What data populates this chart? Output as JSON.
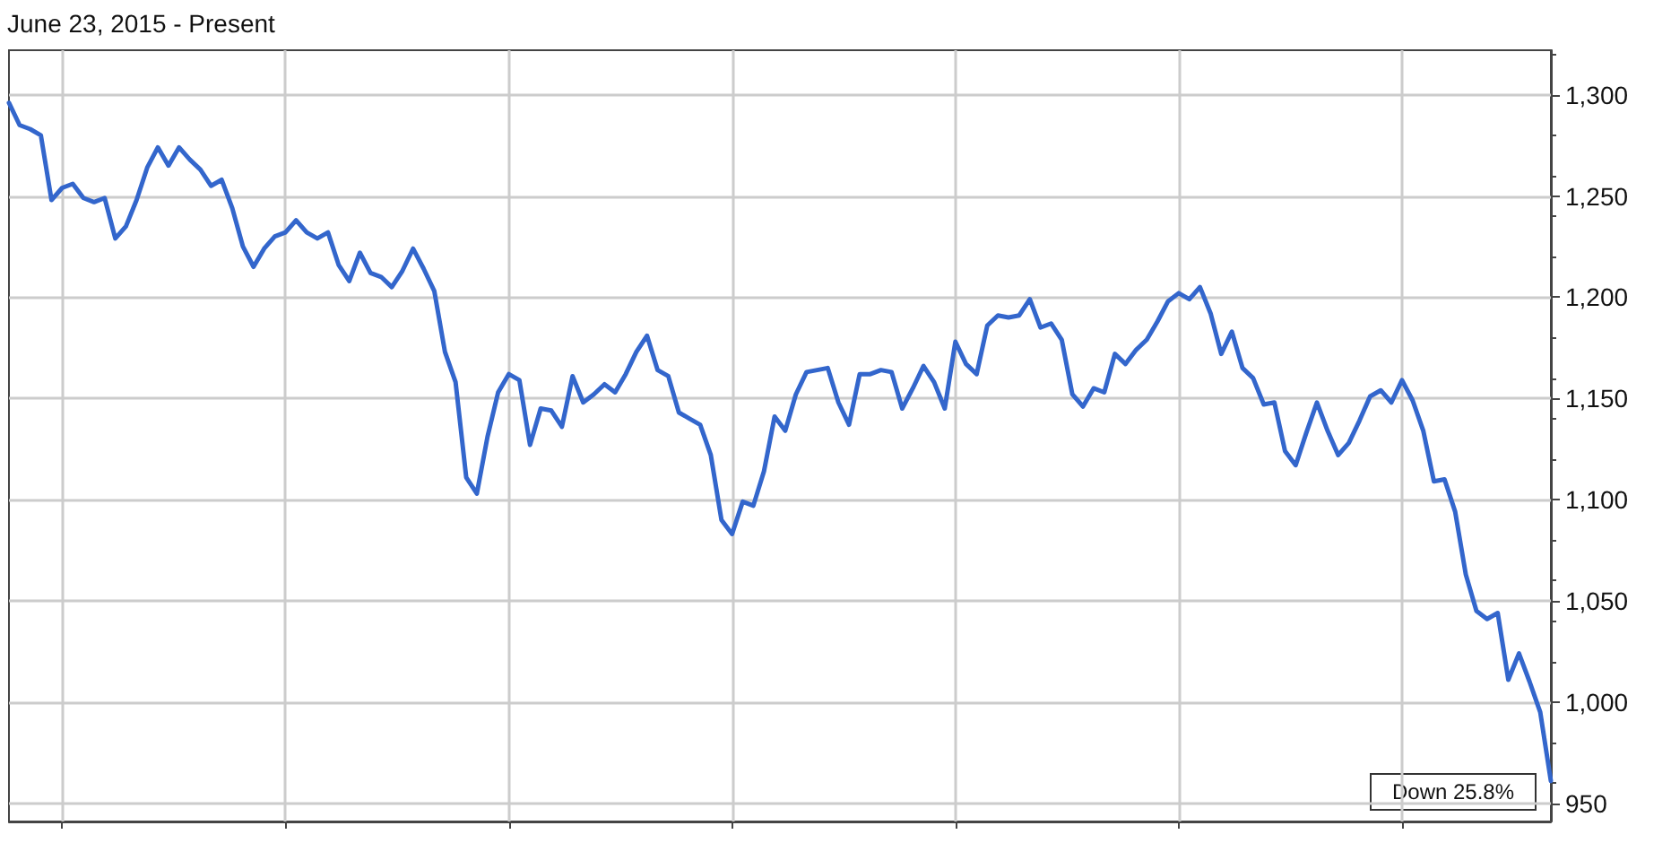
{
  "chart_data": {
    "type": "line",
    "title": "June 23, 2015 - Present",
    "categories": [
      null,
      null,
      null,
      null,
      null,
      null,
      null,
      null,
      null,
      null,
      null,
      null,
      null,
      null,
      null,
      null,
      null,
      null,
      null,
      null,
      null,
      null,
      null,
      null,
      null,
      null,
      null,
      null,
      null,
      null,
      null,
      null,
      null,
      null,
      null,
      null,
      null,
      null,
      null,
      null,
      null,
      null,
      null,
      null,
      null,
      null,
      null,
      null,
      null,
      null,
      null,
      null,
      null,
      null,
      null,
      null,
      null,
      null,
      null,
      null,
      null,
      null,
      null,
      null,
      null,
      null,
      null,
      null,
      null,
      null,
      null,
      null,
      null,
      null,
      null,
      null,
      null,
      null,
      null,
      null,
      null,
      null,
      null,
      null,
      null,
      null,
      null,
      null,
      null,
      null,
      null,
      null,
      null,
      null,
      null,
      null,
      null,
      null,
      null,
      null,
      null,
      null,
      null,
      null,
      null,
      null,
      null,
      null,
      null,
      null,
      null,
      null,
      null,
      null,
      null,
      null,
      null,
      null,
      null,
      null,
      null,
      null,
      null,
      null,
      null,
      null,
      null,
      null,
      null,
      null,
      null,
      null,
      null,
      null,
      null,
      null,
      null,
      null,
      null,
      null,
      null,
      null,
      null,
      null,
      null,
      null
    ],
    "series": [
      {
        "color": "#3366cc",
        "values": [
          1296,
          1285,
          1283,
          1280,
          1248,
          1254,
          1256,
          1249,
          1247,
          1249,
          1229,
          1235,
          1248,
          1264,
          1274,
          1265,
          1274,
          1268,
          1263,
          1255,
          1258,
          1244,
          1225,
          1215,
          1224,
          1230,
          1232,
          1238,
          1232,
          1229,
          1232,
          1216,
          1208,
          1222,
          1212,
          1210,
          1205,
          1213,
          1224,
          1214,
          1203,
          1173,
          1158,
          1111,
          1103,
          1131,
          1153,
          1162,
          1159,
          1127,
          1145,
          1144,
          1136,
          1161,
          1148,
          1152,
          1157,
          1153,
          1162,
          1173,
          1181,
          1164,
          1161,
          1143,
          1140,
          1137,
          1122,
          1090,
          1083,
          1099,
          1097,
          1114,
          1141,
          1134,
          1152,
          1163,
          1164,
          1165,
          1148,
          1137,
          1162,
          1162,
          1164,
          1163,
          1145,
          1155,
          1166,
          1158,
          1145,
          1178,
          1167,
          1162,
          1186,
          1191,
          1190,
          1191,
          1199,
          1185,
          1187,
          1179,
          1152,
          1146,
          1155,
          1153,
          1172,
          1167,
          1174,
          1179,
          1188,
          1198,
          1202,
          1199,
          1205,
          1192,
          1172,
          1183,
          1165,
          1160,
          1147,
          1148,
          1124,
          1117,
          1133,
          1148,
          1134,
          1122,
          1128,
          1139,
          1151,
          1154,
          1148,
          1159,
          1149,
          1134,
          1109,
          1110,
          1094,
          1063,
          1045,
          1041,
          1044,
          1011,
          1024,
          1010,
          995,
          961
        ]
      }
    ],
    "ylim": [
      941,
      1322
    ],
    "yticks": [
      {
        "value": 950,
        "label": "950"
      },
      {
        "value": 1000,
        "label": "1,000"
      },
      {
        "value": 1050,
        "label": "1,050"
      },
      {
        "value": 1100,
        "label": "1,100"
      },
      {
        "value": 1150,
        "label": "1,150"
      },
      {
        "value": 1200,
        "label": "1,200"
      },
      {
        "value": 1250,
        "label": "1,250"
      },
      {
        "value": 1300,
        "label": "1,300"
      }
    ],
    "grid": true,
    "marker": "none",
    "line_style": "solid",
    "annotations": [
      "Down 25.8%"
    ]
  }
}
